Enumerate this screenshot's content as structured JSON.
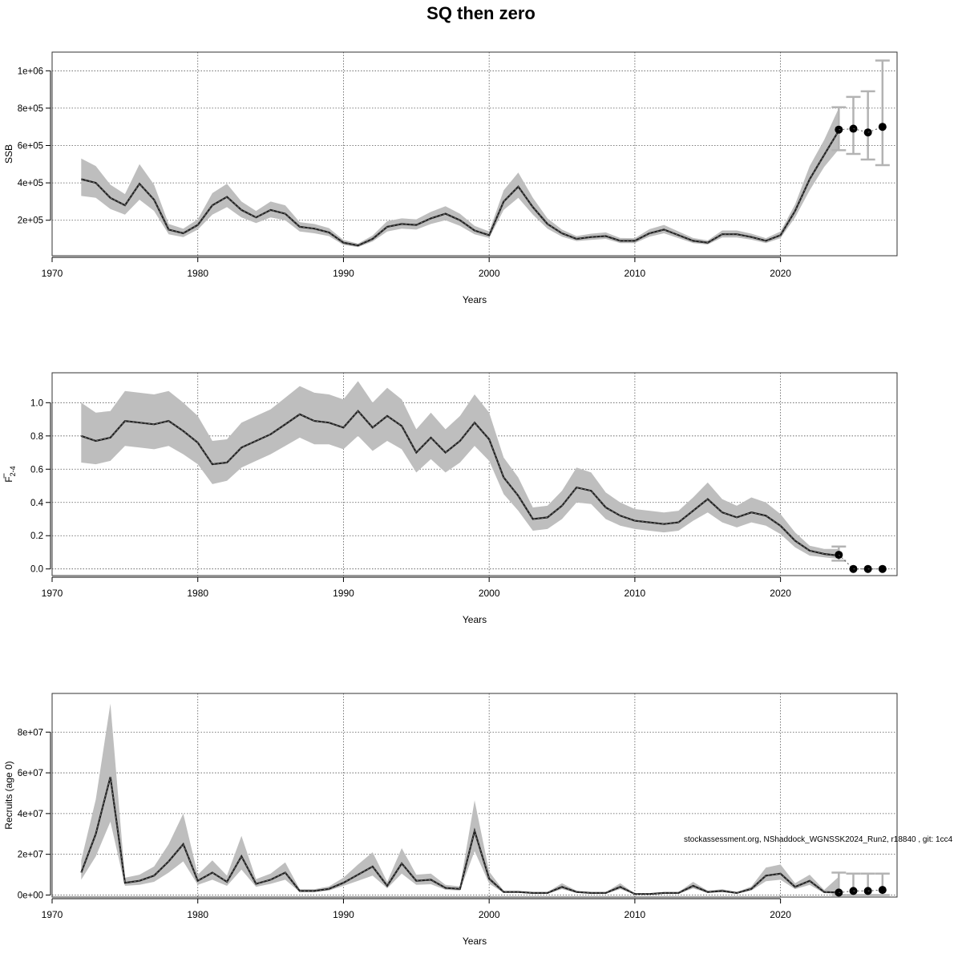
{
  "title": "SQ then zero",
  "footnote": "stockassessment.org, NShaddock_WGNSSK2024_Run2, r18840 , git: 1cc4",
  "colors": {
    "band": "#bebebe",
    "line": "#222222",
    "frame": "#333333",
    "grid": "#555555",
    "forecast_errorbar": "#b3b3b3",
    "forecast_point": "#000000"
  },
  "chart_data": [
    {
      "type": "line",
      "ylabel": "SSB",
      "xlabel": "Years",
      "xlim": [
        1970,
        2028
      ],
      "ylim": [
        10000,
        1100000
      ],
      "x_ticks": [
        1970,
        1980,
        1990,
        2000,
        2010,
        2020
      ],
      "y_ticks": [
        200000,
        400000,
        600000,
        800000,
        1000000
      ],
      "y_tick_labels": [
        "2e+05",
        "4e+05",
        "6e+05",
        "8e+05",
        "1e+06"
      ],
      "grid": true,
      "x": [
        1972,
        1973,
        1974,
        1975,
        1976,
        1977,
        1978,
        1979,
        1980,
        1981,
        1982,
        1983,
        1984,
        1985,
        1986,
        1987,
        1988,
        1989,
        1990,
        1991,
        1992,
        1993,
        1994,
        1995,
        1996,
        1997,
        1998,
        1999,
        2000,
        2001,
        2002,
        2003,
        2004,
        2005,
        2006,
        2007,
        2008,
        2009,
        2010,
        2011,
        2012,
        2013,
        2014,
        2015,
        2016,
        2017,
        2018,
        2019,
        2020,
        2021,
        2022,
        2023,
        2024
      ],
      "estimate": [
        420000,
        400000,
        320000,
        280000,
        395000,
        310000,
        150000,
        130000,
        175000,
        280000,
        325000,
        255000,
        215000,
        255000,
        235000,
        165000,
        155000,
        135000,
        80000,
        65000,
        100000,
        165000,
        180000,
        175000,
        210000,
        235000,
        200000,
        145000,
        120000,
        300000,
        380000,
        270000,
        180000,
        130000,
        100000,
        110000,
        115000,
        90000,
        90000,
        130000,
        150000,
        120000,
        90000,
        80000,
        125000,
        125000,
        110000,
        90000,
        120000,
        250000,
        420000,
        550000,
        680000
      ],
      "lower": [
        330000,
        320000,
        260000,
        230000,
        310000,
        250000,
        125000,
        110000,
        150000,
        230000,
        270000,
        215000,
        185000,
        215000,
        200000,
        140000,
        130000,
        115000,
        68000,
        56000,
        86000,
        140000,
        155000,
        150000,
        180000,
        200000,
        170000,
        125000,
        105000,
        255000,
        320000,
        230000,
        155000,
        112000,
        88000,
        95000,
        100000,
        78000,
        78000,
        112000,
        130000,
        104000,
        78000,
        70000,
        108000,
        108000,
        96000,
        78000,
        104000,
        215000,
        360000,
        485000,
        580000
      ],
      "upper": [
        530000,
        490000,
        390000,
        340000,
        500000,
        390000,
        180000,
        155000,
        205000,
        345000,
        395000,
        300000,
        250000,
        300000,
        280000,
        190000,
        180000,
        158000,
        95000,
        75000,
        118000,
        195000,
        210000,
        205000,
        245000,
        275000,
        235000,
        170000,
        140000,
        360000,
        455000,
        320000,
        210000,
        150000,
        115000,
        128000,
        135000,
        105000,
        104000,
        152000,
        175000,
        140000,
        105000,
        92000,
        145000,
        145000,
        128000,
        104000,
        140000,
        285000,
        490000,
        630000,
        800000
      ],
      "forecast": {
        "x": [
          2024,
          2025,
          2026,
          2027
        ],
        "estimate": [
          685000,
          690000,
          670000,
          700000
        ],
        "lower": [
          575000,
          555000,
          525000,
          495000
        ],
        "upper": [
          805000,
          860000,
          890000,
          1055000
        ]
      }
    },
    {
      "type": "line",
      "ylabel_main": "F",
      "ylabel_sub": "2-4",
      "xlabel": "Years",
      "xlim": [
        1970,
        2028
      ],
      "ylim": [
        -0.04,
        1.18
      ],
      "x_ticks": [
        1970,
        1980,
        1990,
        2000,
        2010,
        2020
      ],
      "y_ticks": [
        0,
        0.2,
        0.4,
        0.6,
        0.8,
        1.0
      ],
      "y_tick_labels": [
        "0.0",
        "0.2",
        "0.4",
        "0.6",
        "0.8",
        "1.0"
      ],
      "grid": true,
      "x": [
        1972,
        1973,
        1974,
        1975,
        1976,
        1977,
        1978,
        1979,
        1980,
        1981,
        1982,
        1983,
        1984,
        1985,
        1986,
        1987,
        1988,
        1989,
        1990,
        1991,
        1992,
        1993,
        1994,
        1995,
        1996,
        1997,
        1998,
        1999,
        2000,
        2001,
        2002,
        2003,
        2004,
        2005,
        2006,
        2007,
        2008,
        2009,
        2010,
        2011,
        2012,
        2013,
        2014,
        2015,
        2016,
        2017,
        2018,
        2019,
        2020,
        2021,
        2022,
        2023,
        2024
      ],
      "estimate": [
        0.8,
        0.77,
        0.79,
        0.89,
        0.88,
        0.87,
        0.89,
        0.83,
        0.76,
        0.63,
        0.64,
        0.73,
        0.77,
        0.81,
        0.87,
        0.93,
        0.89,
        0.88,
        0.85,
        0.95,
        0.85,
        0.92,
        0.86,
        0.7,
        0.79,
        0.7,
        0.77,
        0.88,
        0.78,
        0.55,
        0.44,
        0.3,
        0.31,
        0.38,
        0.49,
        0.47,
        0.37,
        0.32,
        0.29,
        0.28,
        0.27,
        0.28,
        0.35,
        0.42,
        0.34,
        0.31,
        0.34,
        0.32,
        0.26,
        0.17,
        0.11,
        0.09,
        0.08
      ],
      "lower": [
        0.64,
        0.63,
        0.65,
        0.74,
        0.73,
        0.72,
        0.74,
        0.69,
        0.63,
        0.51,
        0.53,
        0.61,
        0.65,
        0.69,
        0.74,
        0.79,
        0.75,
        0.75,
        0.72,
        0.8,
        0.71,
        0.77,
        0.72,
        0.58,
        0.66,
        0.58,
        0.64,
        0.74,
        0.65,
        0.45,
        0.35,
        0.23,
        0.24,
        0.3,
        0.4,
        0.39,
        0.3,
        0.26,
        0.24,
        0.23,
        0.22,
        0.23,
        0.29,
        0.34,
        0.28,
        0.25,
        0.28,
        0.26,
        0.21,
        0.13,
        0.08,
        0.07,
        0.06
      ],
      "upper": [
        1.0,
        0.94,
        0.95,
        1.07,
        1.06,
        1.05,
        1.07,
        1.0,
        0.92,
        0.77,
        0.78,
        0.88,
        0.92,
        0.96,
        1.03,
        1.1,
        1.06,
        1.05,
        1.02,
        1.13,
        1.0,
        1.09,
        1.02,
        0.84,
        0.94,
        0.84,
        0.92,
        1.05,
        0.94,
        0.67,
        0.55,
        0.37,
        0.38,
        0.47,
        0.61,
        0.58,
        0.46,
        0.4,
        0.36,
        0.35,
        0.34,
        0.35,
        0.43,
        0.52,
        0.42,
        0.38,
        0.43,
        0.4,
        0.33,
        0.22,
        0.14,
        0.12,
        0.12
      ],
      "forecast": {
        "x": [
          2024,
          2025,
          2026,
          2027
        ],
        "estimate": [
          0.085,
          0.0,
          0.0,
          0.0
        ],
        "lower": [
          0.05,
          0.0,
          0.0,
          0.0
        ],
        "upper": [
          0.135,
          0.0,
          0.0,
          0.0
        ]
      }
    },
    {
      "type": "line",
      "ylabel": "Recruits (age 0)",
      "xlabel": "Years",
      "xlim": [
        1970,
        2028
      ],
      "ylim": [
        -1000000,
        99000000
      ],
      "x_ticks": [
        1970,
        1980,
        1990,
        2000,
        2010,
        2020
      ],
      "y_ticks": [
        0,
        20000000,
        40000000,
        60000000,
        80000000
      ],
      "y_tick_labels": [
        "0e+00",
        "2e+07",
        "4e+07",
        "6e+07",
        "8e+07"
      ],
      "grid": true,
      "x": [
        1972,
        1973,
        1974,
        1975,
        1976,
        1977,
        1978,
        1979,
        1980,
        1981,
        1982,
        1983,
        1984,
        1985,
        1986,
        1987,
        1988,
        1989,
        1990,
        1991,
        1992,
        1993,
        1994,
        1995,
        1996,
        1997,
        1998,
        1999,
        2000,
        2001,
        2002,
        2003,
        2004,
        2005,
        2006,
        2007,
        2008,
        2009,
        2010,
        2011,
        2012,
        2013,
        2014,
        2015,
        2016,
        2017,
        2018,
        2019,
        2020,
        2021,
        2022,
        2023,
        2024
      ],
      "estimate": [
        11000000,
        30000000,
        58000000,
        6000000,
        7000000,
        9500000,
        16500000,
        25000000,
        7000000,
        11000000,
        6500000,
        19000000,
        5500000,
        7500000,
        11000000,
        2000000,
        2000000,
        3000000,
        6000000,
        10000000,
        14000000,
        4500000,
        15500000,
        7000000,
        7500000,
        3500000,
        3000000,
        31500000,
        8000000,
        1500000,
        1500000,
        1000000,
        1000000,
        4000000,
        1500000,
        1000000,
        1000000,
        4000000,
        500000,
        500000,
        1000000,
        1000000,
        4500000,
        1500000,
        2000000,
        1000000,
        3000000,
        9500000,
        10500000,
        4000000,
        7000000,
        1500000,
        1200000
      ],
      "lower": [
        7500000,
        19000000,
        36000000,
        4500000,
        5000000,
        6500000,
        11000000,
        16500000,
        5000000,
        7500000,
        4500000,
        12500000,
        4000000,
        5500000,
        7500000,
        1500000,
        1500000,
        2200000,
        4500000,
        7000000,
        9500000,
        3300000,
        10500000,
        5000000,
        5300000,
        2600000,
        2200000,
        21500000,
        5600000,
        1100000,
        1100000,
        700000,
        700000,
        2900000,
        1100000,
        700000,
        700000,
        2900000,
        350000,
        350000,
        700000,
        700000,
        3200000,
        1100000,
        1450000,
        700000,
        2200000,
        6800000,
        7500000,
        2900000,
        5000000,
        900000,
        600000
      ],
      "upper": [
        17000000,
        47000000,
        94000000,
        8500000,
        10000000,
        14000000,
        25000000,
        40000000,
        10000000,
        17000000,
        9500000,
        29000000,
        7800000,
        10500000,
        16000000,
        2800000,
        2800000,
        4200000,
        8500000,
        15000000,
        21000000,
        6500000,
        23000000,
        10000000,
        10500000,
        5000000,
        4200000,
        46500000,
        11500000,
        2100000,
        2100000,
        1400000,
        1400000,
        5800000,
        2100000,
        1400000,
        1400000,
        5800000,
        700000,
        700000,
        1400000,
        1400000,
        6500000,
        2100000,
        2800000,
        1400000,
        4200000,
        13500000,
        15000000,
        5800000,
        10000000,
        2500000,
        9000000
      ],
      "forecast": {
        "x": [
          2024,
          2025,
          2026,
          2027
        ],
        "estimate": [
          1200000,
          2000000,
          2000000,
          2500000
        ],
        "lower": [
          0,
          0,
          0,
          0
        ],
        "upper": [
          11000000,
          10500000,
          10500000,
          10500000
        ]
      }
    }
  ]
}
